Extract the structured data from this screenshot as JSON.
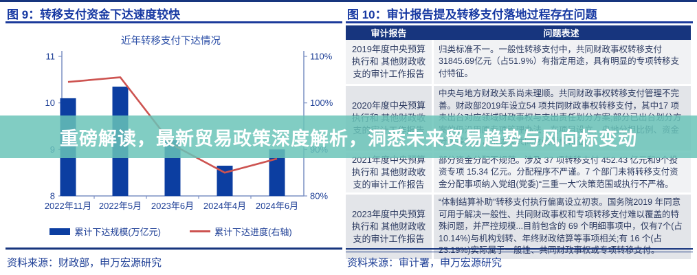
{
  "banner": {
    "text": "重磅解读，最新贸易政策深度解析，洞悉未来贸易趋势与风向标变动"
  },
  "colors": {
    "accent_navy": "#17357e",
    "title_blue": "#1638a2",
    "bar_blue": "#0c3ea1",
    "line_red": "#cd5350",
    "banner_teal": "#69c3b8",
    "row_light": "#f1f2f4",
    "row_dark": "#e3e5e9"
  },
  "left_panel": {
    "figure_label": "图 9：转移支付资金下达速度较快",
    "source": "资料来源：财政部，申万宏源研究"
  },
  "right_panel": {
    "figure_label": "图 10：审计报告提及转移支付落地过程存在问题",
    "source": "资料来源：审计署，申万宏源研究"
  },
  "chart_data": [
    {
      "type": "bar",
      "title": "近年转移支付下达情况",
      "categories": [
        "2022年11月",
        "2022年5月",
        "2023年6月",
        "2024年4月",
        "2024年6月"
      ],
      "series": [
        {
          "name": "累计下达规模(万亿元)",
          "kind": "bar",
          "axis": "left",
          "color": "#0c3ea1",
          "values": [
            10.1,
            10.35,
            9.2,
            8.65,
            9.0
          ]
        },
        {
          "name": "累计下达进度(右轴)",
          "kind": "line",
          "axis": "right",
          "color": "#cd5350",
          "values": [
            104.5,
            105.5,
            91,
            85,
            88
          ]
        }
      ],
      "left_axis": {
        "min": 8,
        "max": 11,
        "ticks": [
          11,
          10,
          9,
          8
        ]
      },
      "right_axis": {
        "min": 80,
        "max": 110,
        "ticks": [
          "110%",
          "100%",
          "90%",
          "80%"
        ]
      },
      "legend_position": "bottom",
      "grid": false
    },
    {
      "type": "table",
      "title": "图 10：审计报告提及转移支付落地过程存在问题",
      "columns": [
        "审计报告",
        "问题表述"
      ],
      "rows": [
        [
          "2019年度中央预算执行和 其他财政收支的审计工作报告",
          "归类标准不一。一般性转移支付中，共同财政事权转移支付31845.69亿元（占51.9%）有指定用途，具有明显的专项转移支付特征。"
        ],
        [
          "2020年度中央预算执行和 其他财政收支的审计工作报告",
          "中央与地方财政关系尚未理顺。共同财政事权转移支付管理不完善。财政部2019年设立54 项共同财政事权转移支付，其中17 项未出台对应领域财政事权与支出责任划分方案;部分已出台划分方案的仍沿用原专项管理办法，在项目设立、央地分担比例、资金分配等方面，未体现共同财政事权特征。"
        ],
        [
          "2021年度中央预算执行和 其他财政收支的审计工作报告",
          "部分资金分配不规范。涉及 37 项转移支付 452.43 亿元和9个投资专项 15.34 亿元。分配程序不严谨。7 个部门未将转移支付资金分配事项纳入党组(党委)“三重一大”决策范围或执行不严格。"
        ],
        [
          "2023年度中央预算执行和 其他财政收支的审计工作报告",
          "“体制结算补助”转移支付执行偏离设立初衷。国务院2019 年同意可用于解决一般性、共同财政事权和专项转移支付难以覆盖的特殊问题，并严控规模...目前包含的 69 个明细事项中，仅有7个(占10.14%)与机构划转、年终财政结算等事项相关;有 16 个(占23.19%)实际属于一般性、共同财政事权或专项转移支付。"
        ]
      ]
    }
  ]
}
